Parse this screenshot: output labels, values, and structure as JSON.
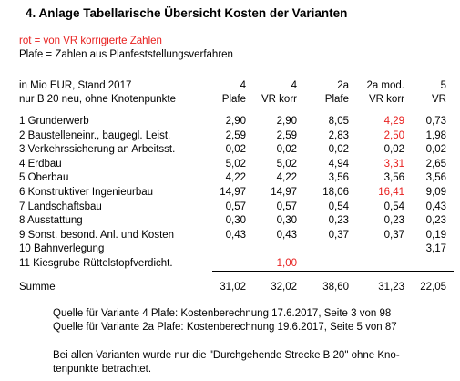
{
  "heading": "4.   Anlage Tabellarische Übersicht Kosten der Varianten",
  "legend": {
    "red_note": "rot = von  VR korrigierte Zahlen",
    "plafe_note": "Plafe = Zahlen aus Planfeststellungsverfahren"
  },
  "colors": {
    "corrected": "#e8201f",
    "text": "#000000"
  },
  "table": {
    "unit_line1": "in Mio EUR, Stand 2017",
    "unit_line2": "nur B 20 neu, ohne Knotenpunkte",
    "columns": [
      {
        "line1": "4",
        "line2": "Plafe"
      },
      {
        "line1": "4",
        "line2": "VR korr"
      },
      {
        "line1": "2a",
        "line2": "Plafe"
      },
      {
        "line1": "2a mod.",
        "line2": "VR korr"
      },
      {
        "line1": "5",
        "line2": "VR"
      }
    ],
    "rows": [
      {
        "label": "1 Grunderwerb",
        "values": [
          "2,90",
          "2,90",
          "8,05",
          "4,29",
          "0,73"
        ],
        "red": [
          false,
          false,
          false,
          true,
          false
        ]
      },
      {
        "label": "2 Baustelleneinr., baugegl. Leist.",
        "values": [
          "2,59",
          "2,59",
          "2,83",
          "2,50",
          "1,98"
        ],
        "red": [
          false,
          false,
          false,
          true,
          false
        ]
      },
      {
        "label": "3 Verkehrssicherung an Arbeitsst.",
        "values": [
          "0,02",
          "0,02",
          "0,02",
          "0,02",
          "0,02"
        ],
        "red": [
          false,
          false,
          false,
          false,
          false
        ]
      },
      {
        "label": "4 Erdbau",
        "values": [
          "5,02",
          "5,02",
          "4,94",
          "3,31",
          "2,65"
        ],
        "red": [
          false,
          false,
          false,
          true,
          false
        ]
      },
      {
        "label": "5 Oberbau",
        "values": [
          "4,22",
          "4,22",
          "3,56",
          "3,56",
          "3,56"
        ],
        "red": [
          false,
          false,
          false,
          false,
          false
        ]
      },
      {
        "label": "6 Konstruktiver Ingenieurbau",
        "values": [
          "14,97",
          "14,97",
          "18,06",
          "16,41",
          "9,09"
        ],
        "red": [
          false,
          false,
          false,
          true,
          false
        ]
      },
      {
        "label": "7 Landschaftsbau",
        "values": [
          "0,57",
          "0,57",
          "0,54",
          "0,54",
          "0,43"
        ],
        "red": [
          false,
          false,
          false,
          false,
          false
        ]
      },
      {
        "label": "8 Ausstattung",
        "values": [
          "0,30",
          "0,30",
          "0,23",
          "0,23",
          "0,23"
        ],
        "red": [
          false,
          false,
          false,
          false,
          false
        ]
      },
      {
        "label": "9 Sonst. besond. Anl. und Kosten",
        "values": [
          "0,43",
          "0,43",
          "0,37",
          "0,37",
          "0,19"
        ],
        "red": [
          false,
          false,
          false,
          false,
          false
        ]
      },
      {
        "label": "10 Bahnverlegung",
        "values": [
          "",
          "",
          "",
          "",
          "3,17"
        ],
        "red": [
          false,
          false,
          false,
          false,
          false
        ]
      },
      {
        "label": "11 Kiesgrube Rüttelstopfverdicht.",
        "values": [
          "",
          "1,00",
          "",
          "",
          ""
        ],
        "red": [
          false,
          true,
          false,
          false,
          false
        ]
      }
    ],
    "sum": {
      "label": "Summe",
      "values": [
        "31,02",
        "32,02",
        "38,60",
        "31,23",
        "22,05"
      ]
    }
  },
  "notes": {
    "source_4": "Quelle für Variante 4 Plafe: Kostenberechnung 17.6.2017, Seite 3 von 98",
    "source_2a": "Quelle für Variante 2a Plafe: Kostenberechnung 19.6.2017, Seite 5 von 87",
    "remark_line1": "Bei allen Varianten wurde nur die \"Durchgehende Strecke B 20\" ohne Kno-",
    "remark_line2": "tenpunkte betrachtet."
  }
}
